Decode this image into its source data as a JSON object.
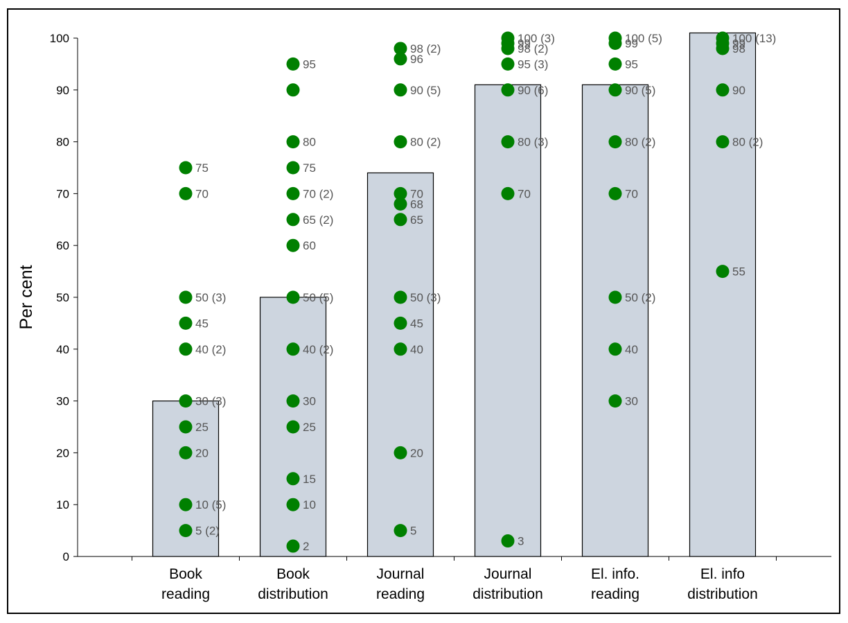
{
  "chart_data": {
    "type": "bar",
    "ylabel": "Per cent",
    "xlabel": "",
    "ylim": [
      0,
      100
    ],
    "yticks": [
      0,
      10,
      20,
      30,
      40,
      50,
      60,
      70,
      80,
      90,
      100
    ],
    "grid": false,
    "categories": [
      [
        "Book",
        "reading"
      ],
      [
        "Book",
        "distribution"
      ],
      [
        "Journal",
        "reading"
      ],
      [
        "Journal",
        "distribution"
      ],
      [
        "El. info.",
        "reading"
      ],
      [
        "El. info",
        "distribution"
      ]
    ],
    "values": [
      30,
      50,
      74,
      91,
      91,
      101
    ],
    "bar_color": "#cdd5df",
    "point_color": "#008000",
    "points": [
      [
        {
          "y": 75,
          "label": "75"
        },
        {
          "y": 70,
          "label": "70"
        },
        {
          "y": 50,
          "label": "50 (3)"
        },
        {
          "y": 45,
          "label": "45"
        },
        {
          "y": 40,
          "label": "40 (2)"
        },
        {
          "y": 30,
          "label": "30 (3)"
        },
        {
          "y": 25,
          "label": "25"
        },
        {
          "y": 20,
          "label": "20"
        },
        {
          "y": 10,
          "label": "10 (5)"
        },
        {
          "y": 5,
          "label": "5 (2)"
        }
      ],
      [
        {
          "y": 95,
          "label": "95"
        },
        {
          "y": 90,
          "label": ""
        },
        {
          "y": 80,
          "label": "80"
        },
        {
          "y": 75,
          "label": "75"
        },
        {
          "y": 70,
          "label": "70 (2)"
        },
        {
          "y": 65,
          "label": "65 (2)"
        },
        {
          "y": 60,
          "label": "60"
        },
        {
          "y": 50,
          "label": "50 (5)"
        },
        {
          "y": 40,
          "label": "40 (2)"
        },
        {
          "y": 30,
          "label": "30"
        },
        {
          "y": 25,
          "label": "25"
        },
        {
          "y": 15,
          "label": "15"
        },
        {
          "y": 10,
          "label": "10"
        },
        {
          "y": 2,
          "label": "2"
        }
      ],
      [
        {
          "y": 98,
          "label": "98 (2)"
        },
        {
          "y": 96,
          "label": "96"
        },
        {
          "y": 90,
          "label": "90 (5)"
        },
        {
          "y": 80,
          "label": "80 (2)"
        },
        {
          "y": 70,
          "label": "70"
        },
        {
          "y": 68,
          "label": "68"
        },
        {
          "y": 65,
          "label": "65"
        },
        {
          "y": 50,
          "label": "50 (3)"
        },
        {
          "y": 45,
          "label": "45"
        },
        {
          "y": 40,
          "label": "40"
        },
        {
          "y": 20,
          "label": "20"
        },
        {
          "y": 5,
          "label": "5"
        }
      ],
      [
        {
          "y": 100,
          "label": "100 (3)"
        },
        {
          "y": 99,
          "label": "99"
        },
        {
          "y": 98,
          "label": "98 (2)"
        },
        {
          "y": 95,
          "label": "95 (3)"
        },
        {
          "y": 90,
          "label": "90 (6)"
        },
        {
          "y": 80,
          "label": "80 (3)"
        },
        {
          "y": 70,
          "label": "70"
        },
        {
          "y": 3,
          "label": "3"
        }
      ],
      [
        {
          "y": 100,
          "label": "100 (5)"
        },
        {
          "y": 99,
          "label": "99"
        },
        {
          "y": 95,
          "label": "95"
        },
        {
          "y": 90,
          "label": "90 (5)"
        },
        {
          "y": 80,
          "label": "80 (2)"
        },
        {
          "y": 70,
          "label": "70"
        },
        {
          "y": 50,
          "label": "50 (2)"
        },
        {
          "y": 40,
          "label": "40"
        },
        {
          "y": 30,
          "label": "30"
        }
      ],
      [
        {
          "y": 100,
          "label": "100 (13)"
        },
        {
          "y": 99,
          "label": "99"
        },
        {
          "y": 98,
          "label": "98"
        },
        {
          "y": 90,
          "label": "90"
        },
        {
          "y": 80,
          "label": "80 (2)"
        },
        {
          "y": 55,
          "label": "55"
        }
      ]
    ]
  }
}
